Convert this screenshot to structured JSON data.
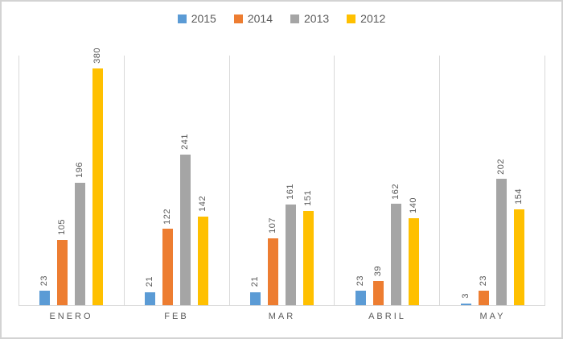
{
  "chart_data": {
    "type": "bar",
    "title": "",
    "xlabel": "",
    "ylabel": "",
    "categories": [
      "ENERO",
      "FEB",
      "MAR",
      "ABRIL",
      "MAY"
    ],
    "series": [
      {
        "name": "2015",
        "color": "#5B9BD5",
        "values": [
          23,
          21,
          21,
          23,
          3
        ]
      },
      {
        "name": "2014",
        "color": "#ED7D31",
        "values": [
          105,
          122,
          107,
          39,
          23
        ]
      },
      {
        "name": "2013",
        "color": "#A5A5A5",
        "values": [
          196,
          241,
          161,
          162,
          202
        ]
      },
      {
        "name": "2012",
        "color": "#FFC000",
        "values": [
          380,
          142,
          151,
          140,
          154
        ]
      }
    ],
    "ylim": [
      0,
      400
    ],
    "legend_position": "top",
    "legend_labels": [
      "2015",
      "2014",
      "2013",
      "2012"
    ],
    "grid": "vertical-category-separators",
    "value_labels": "rotated-90-above-bars",
    "colors": {
      "label_text": "#595959",
      "gridline": "#D9D9D9",
      "axis_line": "#D9D9D9",
      "frame_border": "#D3D3D3",
      "background": "#FFFFFF"
    }
  }
}
